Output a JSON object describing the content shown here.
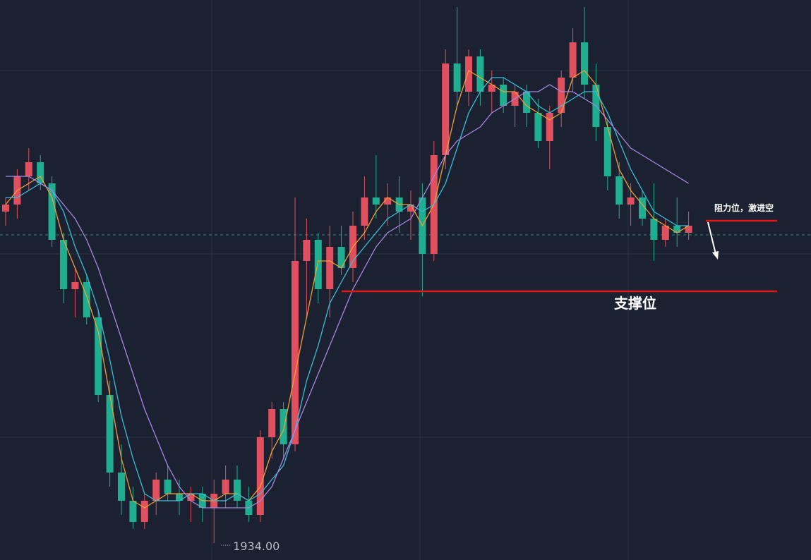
{
  "chart_data": {
    "type": "candlestick",
    "ylim": [
      1931.6,
      2011
    ],
    "grid": true,
    "up_color": "#e0505e",
    "down_color": "#1fae8f",
    "open": [
      1981,
      1982,
      1986,
      1988,
      1985,
      1977,
      1970,
      1971,
      1966,
      1955,
      1944,
      1940,
      1937,
      1940,
      1943,
      1941,
      1940,
      1941,
      1939,
      1941,
      1943,
      1940,
      1938,
      1949,
      1953,
      1948,
      1974,
      1977,
      1970,
      1976,
      1973,
      1979,
      1983,
      1982,
      1983,
      1981,
      1983,
      1975,
      1989,
      2002,
      1998,
      2003,
      1998,
      1999,
      1996,
      1998,
      1995,
      1991,
      1995,
      2000,
      2005,
      1999,
      1993,
      1986,
      1982,
      1983,
      1980,
      1977,
      1979,
      1978
    ],
    "high": [
      1983,
      1987,
      1990,
      1989,
      1986,
      1978,
      1973,
      1972,
      1967,
      1957,
      1948,
      1942,
      1941,
      1944,
      1945,
      1943,
      1942,
      1942,
      1943,
      1945,
      1945,
      1942,
      1950,
      1954,
      1954,
      1983,
      1980,
      1978,
      1979,
      1979,
      1981,
      1986,
      1989,
      1985,
      1986,
      1984,
      1985,
      1991,
      2004,
      2010,
      2004,
      2004,
      2001,
      2000,
      1999,
      1999,
      1997,
      1996,
      2001,
      2007,
      2010,
      2002,
      1994,
      1988,
      1985,
      1984,
      1985,
      1980,
      1983,
      1981
    ],
    "low": [
      1979,
      1980,
      1984,
      1984,
      1976,
      1968,
      1966,
      1965,
      1954,
      1942,
      1938,
      1936,
      1936,
      1938,
      1940,
      1938,
      1937,
      1937,
      1934,
      1939,
      1939,
      1937,
      1937,
      1946,
      1946,
      1947,
      1966,
      1968,
      1966,
      1972,
      1971,
      1977,
      1980,
      1979,
      1978,
      1977,
      1969,
      1974,
      1987,
      1996,
      1996,
      1996,
      1995,
      1995,
      1993,
      1993,
      1990,
      1987,
      1993,
      1998,
      1997,
      1991,
      1984,
      1980,
      1979,
      1979,
      1974,
      1976,
      1976,
      1977
    ],
    "close": [
      1982,
      1986,
      1988,
      1985,
      1977,
      1970,
      1971,
      1966,
      1955,
      1944,
      1940,
      1937,
      1940,
      1943,
      1941,
      1940,
      1941,
      1939,
      1941,
      1943,
      1940,
      1938,
      1949,
      1953,
      1948,
      1974,
      1977,
      1970,
      1976,
      1973,
      1979,
      1983,
      1982,
      1983,
      1981,
      1982,
      1975,
      1989,
      2002,
      1998,
      2003,
      1998,
      1999,
      1996,
      1998,
      1995,
      1991,
      1995,
      2000,
      2005,
      1999,
      1993,
      1986,
      1982,
      1983,
      1980,
      1977,
      1979,
      1978,
      1979
    ],
    "series": [
      {
        "color": "#f0a030",
        "values": [
          1982,
          1984,
          1985,
          1986,
          1983,
          1977,
          1973,
          1969,
          1964,
          1955,
          1946,
          1940,
          1939,
          1940,
          1941,
          1941,
          1941,
          1940,
          1940,
          1941,
          1941,
          1940,
          1942,
          1947,
          1950,
          1958,
          1966,
          1974,
          1974,
          1973,
          1976,
          1978,
          1981,
          1983,
          1982,
          1982,
          1979,
          1982,
          1989,
          1996,
          2001,
          2000,
          1999,
          1998,
          1998,
          1996,
          1995,
          1994,
          1995,
          2000,
          2001,
          1999,
          1993,
          1987,
          1984,
          1982,
          1980,
          1979,
          1978,
          1979
        ]
      },
      {
        "color": "#35c0d8",
        "values": [
          1983,
          1983,
          1984,
          1985,
          1984,
          1981,
          1976,
          1972,
          1967,
          1960,
          1952,
          1946,
          1941,
          1940,
          1940,
          1940,
          1941,
          1941,
          1940,
          1940,
          1941,
          1940,
          1941,
          1943,
          1945,
          1950,
          1957,
          1962,
          1968,
          1971,
          1974,
          1976,
          1978,
          1980,
          1981,
          1982,
          1981,
          1982,
          1985,
          1990,
          1995,
          1998,
          2000,
          2000,
          1999,
          1998,
          1996,
          1995,
          1996,
          1997,
          1998,
          1998,
          1995,
          1991,
          1987,
          1984,
          1981,
          1980,
          1979,
          1979
        ]
      },
      {
        "color": "#a886e6",
        "values": [
          1986,
          1986,
          1986,
          1985,
          1984,
          1982,
          1980,
          1977,
          1973,
          1968,
          1963,
          1958,
          1953,
          1949,
          1945,
          1942,
          1940,
          1939,
          1939,
          1939,
          1939,
          1939,
          1940,
          1942,
          1946,
          1950,
          1954,
          1958,
          1962,
          1966,
          1970,
          1973,
          1976,
          1978,
          1979,
          1980,
          1983,
          1986,
          1989,
          1991,
          1992,
          1993,
          1995,
          1996,
          1997,
          1998,
          1998,
          1999,
          1998,
          1998,
          1997,
          1996,
          1994,
          1992,
          1990,
          1989,
          1988,
          1987,
          1986,
          1985
        ]
      }
    ],
    "current_price": 1977.7,
    "low_marker": {
      "value": 1934,
      "label": "1934.00"
    },
    "annotations": [
      {
        "text": "阻力位，激进空",
        "value": 1979.7
      },
      {
        "text": "支撑位",
        "value": 1969.7
      }
    ]
  }
}
